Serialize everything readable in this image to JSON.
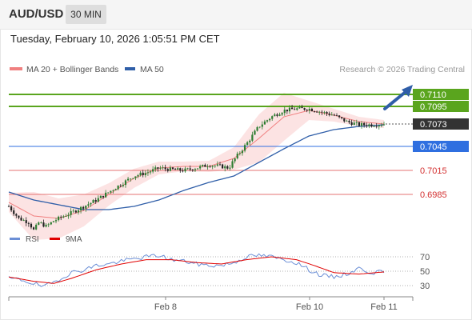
{
  "header": {
    "symbol": "AUD/USD",
    "timeframe": "30 MIN",
    "datetime": "Tuesday, February 10, 2026 1:05:51 PM CET"
  },
  "legend": {
    "ma20": {
      "label": "MA 20 + Bollinger Bands",
      "color": "#f08080"
    },
    "ma50": {
      "label": "MA 50",
      "color": "#2f5ea8"
    },
    "credit": "Research © 2026 Trading Central"
  },
  "rsi_legend": {
    "rsi": {
      "label": "RSI",
      "color": "#6b8fd6"
    },
    "ma9": {
      "label": "9MA",
      "color": "#e00000"
    }
  },
  "colors": {
    "resistance": "#5aa51e",
    "support_blue": "#2f6fe0",
    "support_red": "#e57373",
    "current": "#333333",
    "bull_candle": "#2e7d32",
    "bear_candle": "#222222",
    "band_fill": "#fbdada",
    "arrow": "#2f5ea8"
  },
  "chart_data": [
    {
      "type": "candlestick",
      "symbol": "AUD/USD",
      "timeframe": "30 MIN",
      "x_labels": [
        "Feb 8",
        "Feb 10",
        "Feb 11"
      ],
      "ylim": [
        0.6945,
        0.7128
      ],
      "current_price": 0.7073,
      "levels": [
        {
          "label": "0.7110",
          "value": 0.711,
          "kind": "resistance"
        },
        {
          "label": "0.7095",
          "value": 0.7095,
          "kind": "resistance"
        },
        {
          "label": "0.7073",
          "value": 0.7073,
          "kind": "current"
        },
        {
          "label": "0.7045",
          "value": 0.7045,
          "kind": "support_blue"
        },
        {
          "label": "0.7015",
          "value": 0.7015,
          "kind": "support_red"
        },
        {
          "label": "0.6985",
          "value": 0.6985,
          "kind": "support_red"
        }
      ],
      "close_path": [
        [
          0,
          0.697
        ],
        [
          4,
          0.6955
        ],
        [
          8,
          0.695
        ],
        [
          10,
          0.694
        ],
        [
          12,
          0.695
        ],
        [
          15,
          0.6945
        ],
        [
          18,
          0.6952
        ],
        [
          22,
          0.6958
        ],
        [
          25,
          0.6962
        ],
        [
          30,
          0.697
        ],
        [
          35,
          0.6978
        ],
        [
          40,
          0.6988
        ],
        [
          45,
          0.6998
        ],
        [
          50,
          0.7008
        ],
        [
          55,
          0.7012
        ],
        [
          60,
          0.7018
        ],
        [
          65,
          0.7016
        ],
        [
          70,
          0.7015
        ],
        [
          75,
          0.7018
        ],
        [
          80,
          0.7022
        ],
        [
          85,
          0.702
        ],
        [
          88,
          0.7018
        ],
        [
          90,
          0.7028
        ],
        [
          95,
          0.7048
        ],
        [
          100,
          0.707
        ],
        [
          105,
          0.7082
        ],
        [
          110,
          0.709
        ],
        [
          115,
          0.7092
        ],
        [
          120,
          0.7092
        ],
        [
          125,
          0.7088
        ],
        [
          130,
          0.7084
        ],
        [
          135,
          0.7076
        ],
        [
          140,
          0.7072
        ],
        [
          145,
          0.7072
        ],
        [
          150,
          0.7073
        ]
      ],
      "ma50_path": [
        [
          0,
          0.6988
        ],
        [
          10,
          0.6978
        ],
        [
          20,
          0.6972
        ],
        [
          30,
          0.6966
        ],
        [
          40,
          0.6966
        ],
        [
          50,
          0.697
        ],
        [
          60,
          0.6978
        ],
        [
          70,
          0.699
        ],
        [
          80,
          0.7
        ],
        [
          90,
          0.7008
        ],
        [
          100,
          0.7025
        ],
        [
          110,
          0.7042
        ],
        [
          120,
          0.7058
        ],
        [
          130,
          0.7066
        ],
        [
          140,
          0.707
        ],
        [
          150,
          0.7072
        ]
      ],
      "ma20_path": [
        [
          0,
          0.6975
        ],
        [
          10,
          0.6958
        ],
        [
          20,
          0.6955
        ],
        [
          30,
          0.6965
        ],
        [
          40,
          0.6985
        ],
        [
          50,
          0.7005
        ],
        [
          60,
          0.7018
        ],
        [
          70,
          0.702
        ],
        [
          80,
          0.702
        ],
        [
          90,
          0.703
        ],
        [
          100,
          0.7055
        ],
        [
          110,
          0.7082
        ],
        [
          120,
          0.709
        ],
        [
          130,
          0.7084
        ],
        [
          140,
          0.7076
        ],
        [
          150,
          0.7073
        ]
      ],
      "band_width_path": [
        [
          0,
          0.0012
        ],
        [
          10,
          0.003
        ],
        [
          20,
          0.0025
        ],
        [
          30,
          0.002
        ],
        [
          40,
          0.0014
        ],
        [
          50,
          0.0012
        ],
        [
          60,
          0.0008
        ],
        [
          70,
          0.0006
        ],
        [
          80,
          0.0007
        ],
        [
          90,
          0.0014
        ],
        [
          100,
          0.003
        ],
        [
          110,
          0.003
        ],
        [
          120,
          0.0012
        ],
        [
          130,
          0.0008
        ],
        [
          140,
          0.0006
        ],
        [
          150,
          0.0005
        ]
      ],
      "num_candles": 152
    },
    {
      "type": "line",
      "title": "RSI",
      "yticks": [
        30,
        50,
        70
      ],
      "ylim": [
        20,
        80
      ],
      "rsi_path": [
        [
          0,
          40
        ],
        [
          5,
          38
        ],
        [
          10,
          33
        ],
        [
          14,
          28
        ],
        [
          18,
          35
        ],
        [
          25,
          48
        ],
        [
          30,
          52
        ],
        [
          35,
          58
        ],
        [
          40,
          60
        ],
        [
          45,
          64
        ],
        [
          50,
          67
        ],
        [
          55,
          70
        ],
        [
          60,
          72
        ],
        [
          65,
          66
        ],
        [
          70,
          64
        ],
        [
          75,
          60
        ],
        [
          80,
          58
        ],
        [
          85,
          58
        ],
        [
          90,
          62
        ],
        [
          95,
          70
        ],
        [
          100,
          72
        ],
        [
          105,
          70
        ],
        [
          110,
          66
        ],
        [
          115,
          62
        ],
        [
          120,
          52
        ],
        [
          125,
          44
        ],
        [
          130,
          42
        ],
        [
          135,
          46
        ],
        [
          140,
          54
        ],
        [
          145,
          48
        ],
        [
          150,
          49
        ]
      ],
      "ma9_path": [
        [
          0,
          42
        ],
        [
          10,
          36
        ],
        [
          18,
          33
        ],
        [
          25,
          40
        ],
        [
          35,
          52
        ],
        [
          45,
          60
        ],
        [
          55,
          66
        ],
        [
          65,
          66
        ],
        [
          75,
          62
        ],
        [
          85,
          60
        ],
        [
          95,
          66
        ],
        [
          105,
          70
        ],
        [
          115,
          66
        ],
        [
          122,
          58
        ],
        [
          130,
          48
        ],
        [
          140,
          46
        ],
        [
          150,
          49
        ]
      ]
    }
  ]
}
